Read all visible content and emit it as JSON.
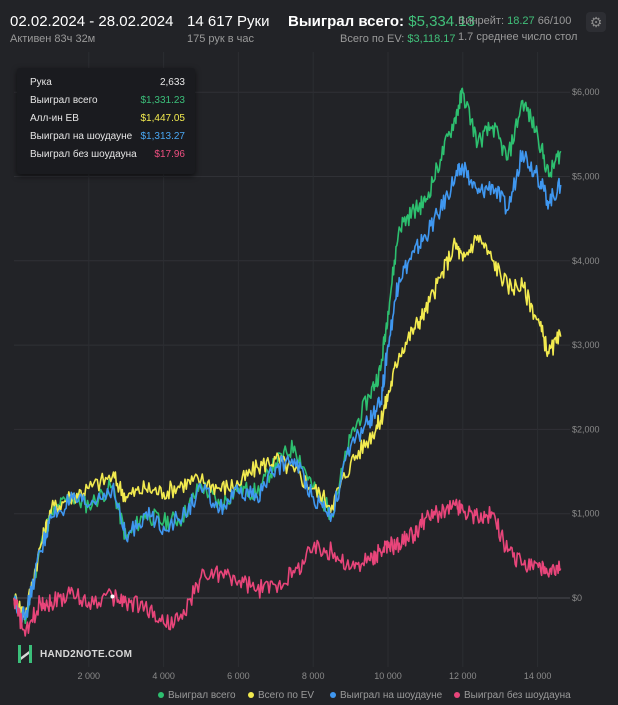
{
  "header": {
    "date_range": "02.02.2024 - 28.02.2024",
    "active_time": "Активен 83ч 32м",
    "hands": "14 617 Руки",
    "hands_per_hour": "175 рук в час",
    "won_total_label": "Выиграл всего:",
    "won_total_value": "$5,334.13",
    "ev_total_label": "Всего по EV:",
    "ev_total_value": "$3,118.17",
    "winrate_label": "Винрейт:",
    "winrate_value": "18.27",
    "winrate_unit": "66/100",
    "avg_table_count": "1.7 среднее число стол",
    "settings_icon": "gear-icon"
  },
  "tooltip": {
    "rows": [
      {
        "label": "Рука",
        "value": "2,633",
        "color": "#e6e6e6"
      },
      {
        "label": "Выиграл всего",
        "value": "$1,331.23",
        "color": "#3bbf7a"
      },
      {
        "label": "Алл-ин EB",
        "value": "$1,447.05",
        "color": "#f2ea4f"
      },
      {
        "label": "Выиграл на шоудауне",
        "value": "$1,313.27",
        "color": "#49a6f2"
      },
      {
        "label": "Выиграл без шоудауна",
        "value": "$17.96",
        "color": "#ee4f80"
      }
    ]
  },
  "logo": {
    "text": "HAND2NOTE.COM"
  },
  "legend": {
    "items": [
      {
        "label": "Выиграл всего",
        "color": "#2dbf6f"
      },
      {
        "label": "Всего по EV",
        "color": "#f2ea4f"
      },
      {
        "label": "Выиграл на шоудауне",
        "color": "#3f97f0"
      },
      {
        "label": "Выиграл без шоудауна",
        "color": "#e8457a"
      }
    ]
  },
  "chart_data": {
    "type": "line",
    "x_ticks": [
      "2 000",
      "4 000",
      "6 000",
      "8 000",
      "10 000",
      "12 000",
      "14 000"
    ],
    "y_ticks": [
      "$0",
      "$1,000",
      "$2,000",
      "$3,000",
      "$4,000",
      "$5,000",
      "$6,000"
    ],
    "xlim": [
      0,
      14617
    ],
    "ylim": [
      -500,
      6100
    ],
    "grid": true,
    "x": [
      0,
      300,
      700,
      1000,
      1500,
      2000,
      2633,
      3000,
      3500,
      4000,
      4500,
      5000,
      5500,
      6000,
      6500,
      7000,
      7500,
      8000,
      8500,
      9000,
      9500,
      9800,
      10000,
      10300,
      10700,
      11000,
      11400,
      11800,
      12000,
      12400,
      12800,
      13200,
      13600,
      14000,
      14300,
      14617
    ],
    "series": [
      {
        "name": "Выиграл всего",
        "color": "#2dbf6f",
        "values": [
          0,
          -300,
          600,
          1000,
          1200,
          1100,
          1330,
          700,
          1000,
          900,
          950,
          1350,
          1100,
          1300,
          1250,
          1600,
          1800,
          1300,
          1000,
          1900,
          2400,
          2700,
          3400,
          4400,
          4600,
          4700,
          5200,
          5700,
          6000,
          5400,
          5600,
          5200,
          5900,
          5500,
          5000,
          5300
        ]
      },
      {
        "name": "Всего по EV",
        "color": "#f2ea4f",
        "values": [
          0,
          -200,
          600,
          1050,
          1200,
          1300,
          1447,
          1200,
          1300,
          1250,
          1350,
          1400,
          1300,
          1350,
          1550,
          1650,
          1500,
          1300,
          1100,
          1600,
          1900,
          2100,
          2400,
          2900,
          3200,
          3400,
          3800,
          4200,
          4000,
          4300,
          4000,
          3700,
          3700,
          3300,
          2900,
          3100
        ]
      },
      {
        "name": "Выиграл на шоудауне",
        "color": "#3f97f0",
        "values": [
          0,
          -250,
          550,
          950,
          1150,
          1100,
          1313,
          700,
          1000,
          850,
          950,
          1300,
          1050,
          1250,
          1200,
          1550,
          1650,
          1200,
          1000,
          1800,
          2100,
          2300,
          3000,
          3800,
          4100,
          4300,
          4600,
          5000,
          5100,
          4800,
          4900,
          4600,
          5300,
          5000,
          4700,
          4900
        ]
      },
      {
        "name": "Выиграл без шоудауна",
        "color": "#e8457a",
        "values": [
          0,
          -450,
          -50,
          -50,
          50,
          -50,
          18,
          -50,
          -100,
          -300,
          -250,
          250,
          300,
          200,
          100,
          150,
          300,
          600,
          550,
          350,
          450,
          550,
          600,
          650,
          750,
          950,
          1000,
          1100,
          1050,
          950,
          1000,
          550,
          400,
          400,
          250,
          350
        ]
      }
    ]
  }
}
